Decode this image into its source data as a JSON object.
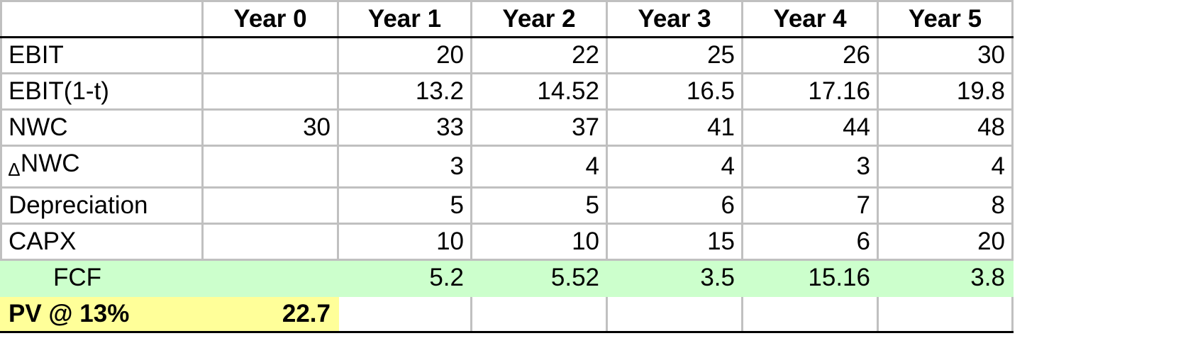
{
  "table": {
    "headers": [
      "",
      "Year 0",
      "Year 1",
      "Year 2",
      "Year 3",
      "Year 4",
      "Year 5"
    ],
    "rows": [
      {
        "label": "EBIT",
        "values": [
          "",
          "20",
          "22",
          "25",
          "26",
          "30"
        ]
      },
      {
        "label": "EBIT(1-t)",
        "values": [
          "",
          "13.2",
          "14.52",
          "16.5",
          "17.16",
          "19.8"
        ]
      },
      {
        "label": "NWC",
        "values": [
          "30",
          "33",
          "37",
          "41",
          "44",
          "48"
        ]
      },
      {
        "label_symbol": "∆",
        "label": "NWC",
        "values": [
          "",
          "3",
          "4",
          "4",
          "3",
          "4"
        ]
      },
      {
        "label": "Depreciation",
        "values": [
          "",
          "5",
          "5",
          "6",
          "7",
          "8"
        ]
      },
      {
        "label": "CAPX",
        "values": [
          "",
          "10",
          "10",
          "15",
          "6",
          "20"
        ]
      },
      {
        "label": "FCF",
        "values": [
          "",
          "5.2",
          "5.52",
          "3.5",
          "15.16",
          "3.8"
        ]
      },
      {
        "label": "PV @ 13%",
        "values": [
          "22.7",
          "",
          "",
          "",
          "",
          ""
        ]
      }
    ]
  },
  "colors": {
    "fcf_highlight": "#ccffcc",
    "pv_highlight": "#ffff99",
    "gridline": "#c0c0c0"
  }
}
